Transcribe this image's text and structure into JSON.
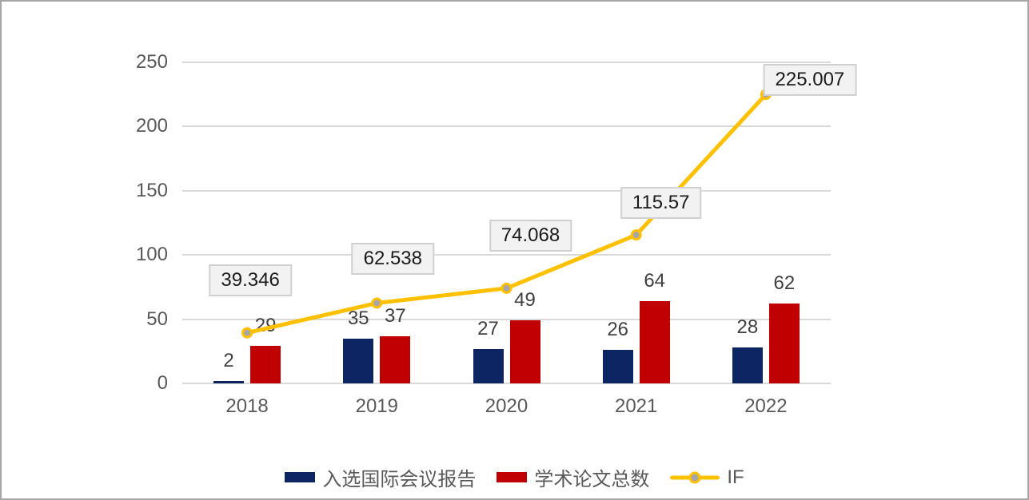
{
  "chart_data": {
    "type": "combo",
    "title": "",
    "categories": [
      "2018",
      "2019",
      "2020",
      "2021",
      "2022"
    ],
    "series": [
      {
        "name": "入选国际会议报告",
        "type": "bar",
        "color": "#0D2563",
        "values": [
          2,
          35,
          27,
          26,
          28
        ]
      },
      {
        "name": "学术论文总数",
        "type": "bar",
        "color": "#C00000",
        "values": [
          29,
          37,
          49,
          64,
          62
        ]
      },
      {
        "name": "IF",
        "type": "line",
        "color": "#FFC000",
        "marker_color": "#A6A6A6",
        "values": [
          39.346,
          62.538,
          74.068,
          115.57,
          225.007
        ],
        "data_labels": [
          "39.346",
          "62.538",
          "74.068",
          "115.57",
          "225.007"
        ],
        "label_offsets": [
          [
            4,
            -66
          ],
          [
            20,
            -55
          ],
          [
            30,
            -66
          ],
          [
            31,
            -40
          ],
          [
            55,
            -18
          ]
        ]
      }
    ],
    "y_axis": {
      "min": 0,
      "max": 250,
      "ticks": [
        "0",
        "50",
        "100",
        "150",
        "200",
        "250"
      ]
    },
    "grid": true,
    "legend_position": "bottom"
  },
  "style": {
    "background": "#FFFFFF",
    "frame_border": "#A6A6A6",
    "gridline_color": "#D9D9D9",
    "axis_text_color": "#595959",
    "bar_label_color": "#404040",
    "callout_fill": "#F2F2F2",
    "callout_border": "#D0D0D0",
    "callout_text_color": "#1A1A1A"
  }
}
